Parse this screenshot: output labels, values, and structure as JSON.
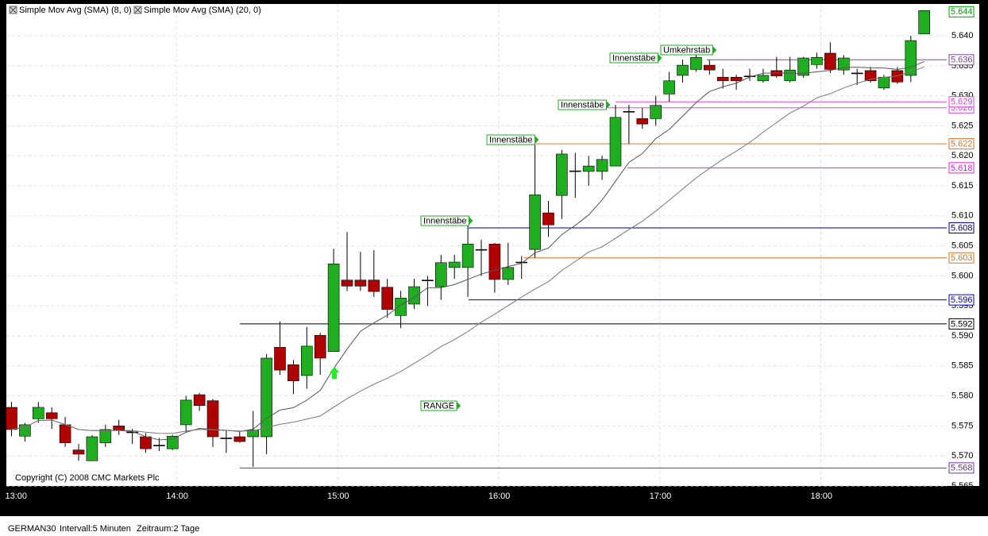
{
  "chart_data": {
    "type": "candlestick",
    "sma": [
      {
        "name": "Simple Mov Avg (SMA) (8, 0)",
        "period": 8,
        "color": "#555555"
      },
      {
        "name": "Simple Mov Avg (SMA) (20, 0)",
        "period": 20,
        "color": "#777777"
      }
    ],
    "copyright": "Copyright (C) 2008 CMC Markets Plc",
    "categories": [
      "13:00",
      null,
      null,
      null,
      null,
      null,
      null,
      null,
      null,
      null,
      null,
      null,
      "14:00",
      null,
      null,
      null,
      null,
      null,
      null,
      null,
      null,
      null,
      null,
      null,
      "15:00",
      null,
      null,
      null,
      null,
      null,
      null,
      null,
      null,
      null,
      null,
      null,
      "16:00",
      null,
      null,
      null,
      null,
      null,
      null,
      null,
      null,
      null,
      null,
      null,
      "17:00",
      null,
      null,
      null,
      null,
      null,
      null,
      null,
      null,
      null,
      null,
      null,
      "18:00",
      null,
      null,
      null,
      null,
      null,
      null,
      null,
      null
    ],
    "open": [
      5.5781,
      5.5733,
      5.5762,
      5.5772,
      5.5752,
      5.571,
      5.5692,
      5.5722,
      5.575,
      5.574,
      5.5732,
      5.5718,
      5.5712,
      5.5752,
      5.5802,
      5.5792,
      5.573,
      5.5732,
      5.5732,
      5.5732,
      5.5881,
      5.5852,
      5.5834,
      5.5901,
      5.5874,
      5.5993,
      5.5993,
      5.5993,
      5.5981,
      5.5934,
      5.5953,
      5.5993,
      5.5982,
      5.6014,
      5.6014,
      5.6044,
      5.6053,
      5.5994,
      5.6023,
      5.6044,
      5.6105,
      5.6134,
      5.6175,
      5.6174,
      5.6174,
      5.6183,
      5.6274,
      5.6262,
      5.6262,
      5.6303,
      5.6334,
      5.6344,
      5.6351,
      5.6331,
      5.6331,
      5.6333,
      5.6325,
      5.6342,
      5.6325,
      5.6334,
      5.6352,
      5.6371,
      5.6343,
      5.6338,
      5.6342,
      5.6313,
      5.6342,
      5.6334,
      5.6403
    ],
    "high": [
      5.579,
      5.5755,
      5.579,
      5.5781,
      5.5765,
      5.572,
      5.5735,
      5.5752,
      5.576,
      5.5745,
      5.5738,
      5.573,
      5.5735,
      5.58,
      5.5805,
      5.5795,
      5.5742,
      5.574,
      5.5775,
      5.587,
      5.5924,
      5.586,
      5.5915,
      5.5905,
      5.6045,
      5.6073,
      5.604,
      5.6043,
      5.5995,
      5.5975,
      5.5995,
      5.6,
      5.6035,
      5.6035,
      5.6092,
      5.606,
      5.6055,
      5.6055,
      5.6033,
      5.6224,
      5.6125,
      5.621,
      5.6205,
      5.62,
      5.62,
      5.6285,
      5.6285,
      5.628,
      5.63,
      5.634,
      5.636,
      5.6383,
      5.636,
      5.6345,
      5.6335,
      5.6345,
      5.6345,
      5.6365,
      5.6365,
      5.6365,
      5.6372,
      5.6389,
      5.6368,
      5.6345,
      5.6348,
      5.6335,
      5.6348,
      5.64,
      5.6442
    ],
    "low": [
      5.5733,
      5.5724,
      5.5755,
      5.5745,
      5.5715,
      5.5692,
      5.5692,
      5.5715,
      5.5735,
      5.572,
      5.5705,
      5.5708,
      5.571,
      5.574,
      5.5775,
      5.5715,
      5.5705,
      5.5722,
      5.5682,
      5.5703,
      5.5835,
      5.5803,
      5.5812,
      5.5835,
      5.5874,
      5.5975,
      5.5975,
      5.5965,
      5.593,
      5.5913,
      5.5945,
      5.595,
      5.596,
      5.5995,
      5.5965,
      5.6,
      5.5972,
      5.5985,
      5.5995,
      5.603,
      5.6065,
      5.6095,
      5.613,
      5.615,
      5.616,
      5.6183,
      5.622,
      5.6245,
      5.625,
      5.629,
      5.6322,
      5.634,
      5.6335,
      5.6312,
      5.631,
      5.6325,
      5.6322,
      5.633,
      5.6322,
      5.633,
      5.6345,
      5.6338,
      5.6335,
      5.6318,
      5.6322,
      5.631,
      5.632,
      5.6323,
      5.6403
    ],
    "close": [
      5.5744,
      5.5752,
      5.5781,
      5.5762,
      5.5722,
      5.5703,
      5.5732,
      5.5744,
      5.5743,
      5.574,
      5.5712,
      5.5718,
      5.5733,
      5.5793,
      5.5784,
      5.5732,
      5.573,
      5.5724,
      5.5743,
      5.5863,
      5.5843,
      5.5825,
      5.5883,
      5.5863,
      5.602,
      5.5983,
      5.5983,
      5.5974,
      5.5944,
      5.5963,
      5.5982,
      5.5993,
      5.6022,
      5.6023,
      5.6053,
      5.6044,
      5.5994,
      5.6014,
      5.6023,
      5.6135,
      5.6085,
      5.6203,
      5.6175,
      5.6183,
      5.6194,
      5.6264,
      5.6274,
      5.6253,
      5.6284,
      5.6325,
      5.6351,
      5.6364,
      5.6343,
      5.6325,
      5.6325,
      5.6333,
      5.6334,
      5.6333,
      5.6343,
      5.6363,
      5.6364,
      5.6344,
      5.6363,
      5.6338,
      5.6325,
      5.6331,
      5.6323,
      5.6392,
      5.6442
    ],
    "up_color": "#1fae1f",
    "down_color": "#b00000",
    "ylim": [
      5.565,
      5.6453
    ],
    "yticks": [
      {
        "value": 5.565,
        "label": "5.565"
      },
      {
        "value": 5.57,
        "label": "5.570"
      },
      {
        "value": 5.575,
        "label": "5.575"
      },
      {
        "value": 5.58,
        "label": "5.580"
      },
      {
        "value": 5.585,
        "label": "5.585"
      },
      {
        "value": 5.59,
        "label": "5.590"
      },
      {
        "value": 5.595,
        "label": "5.595"
      },
      {
        "value": 5.6,
        "label": "5.600"
      },
      {
        "value": 5.605,
        "label": "5.605"
      },
      {
        "value": 5.61,
        "label": "5.610"
      },
      {
        "value": 5.615,
        "label": "5.615"
      },
      {
        "value": 5.62,
        "label": "5.620"
      },
      {
        "value": 5.625,
        "label": "5.625"
      },
      {
        "value": 5.63,
        "label": "5.630"
      },
      {
        "value": 5.635,
        "label": "5.635"
      },
      {
        "value": 5.64,
        "label": "5.640"
      }
    ],
    "grid": true,
    "levels": [
      {
        "value": 5.644,
        "color": "#00a000"
      },
      {
        "value": 5.636,
        "color": "#8040a0"
      },
      {
        "value": 5.628,
        "color": "#e040e0"
      },
      {
        "value": 5.629,
        "color": "#e040e0"
      },
      {
        "value": 5.622,
        "color": "#e07020"
      },
      {
        "value": 5.618,
        "color": "#e020e0"
      },
      {
        "value": 5.608,
        "color": "#000080"
      },
      {
        "value": 5.603,
        "color": "#e07020"
      },
      {
        "value": 5.596,
        "color": "#0000c0"
      },
      {
        "value": 5.592,
        "color": "#000000"
      },
      {
        "value": 5.568,
        "color": "#7030a0"
      }
    ],
    "annotations": [
      "Umkehrstab",
      "Innenstäbe",
      "Innenstäbe",
      "Innenstäbe",
      "Innenstäbe",
      "RANGE"
    ]
  },
  "footer": {
    "symbol": "GERMAN30",
    "interval": "Intervall:5 Minuten",
    "period": "Zeitraum:2 Tage"
  }
}
